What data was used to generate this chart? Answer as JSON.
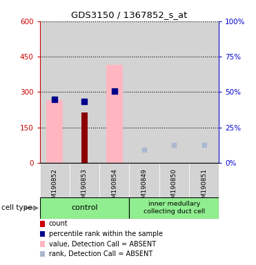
{
  "title": "GDS3150 / 1367852_s_at",
  "samples": [
    "GSM190852",
    "GSM190853",
    "GSM190854",
    "GSM190849",
    "GSM190850",
    "GSM190851"
  ],
  "value_bars": [
    265,
    0,
    415,
    0,
    0,
    0
  ],
  "count_bars": [
    0,
    215,
    0,
    0,
    0,
    0
  ],
  "percentile_dots_y": [
    270,
    260,
    305,
    0,
    0,
    0
  ],
  "rank_dots_y": [
    0,
    0,
    0,
    55,
    75,
    75
  ],
  "value_color": "#ffb6c1",
  "count_color": "#8b0000",
  "percentile_color": "#00008b",
  "rank_color": "#aab8d0",
  "ylim_left": [
    0,
    600
  ],
  "ylim_right": [
    0,
    100
  ],
  "yticks_left": [
    0,
    150,
    300,
    450,
    600
  ],
  "yticks_right": [
    0,
    25,
    50,
    75,
    100
  ],
  "ylabel_left_color": "#cc0000",
  "ylabel_right_color": "#0000cc",
  "bg_sample": "#d3d3d3",
  "group_color": "#90ee90",
  "legend_items": [
    {
      "label": "count",
      "color": "#cc0000"
    },
    {
      "label": "percentile rank within the sample",
      "color": "#00008b"
    },
    {
      "label": "value, Detection Call = ABSENT",
      "color": "#ffb6c1"
    },
    {
      "label": "rank, Detection Call = ABSENT",
      "color": "#aab8d0"
    }
  ]
}
